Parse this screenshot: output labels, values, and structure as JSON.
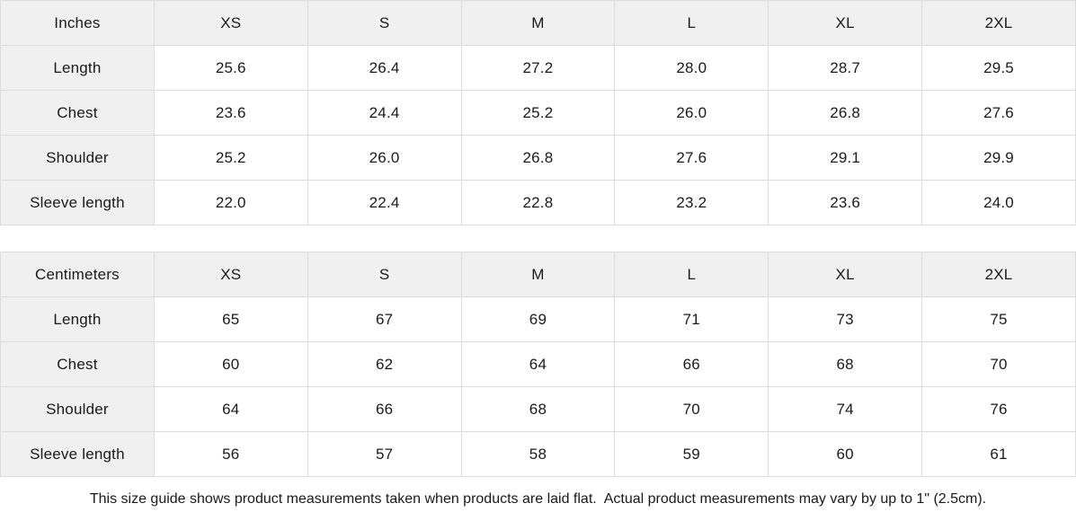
{
  "tables": [
    {
      "id": "inches",
      "unit_label": "Inches",
      "sizes": [
        "XS",
        "S",
        "M",
        "L",
        "XL",
        "2XL"
      ],
      "rows": [
        {
          "label": "Length",
          "values": [
            "25.6",
            "26.4",
            "27.2",
            "28.0",
            "28.7",
            "29.5"
          ]
        },
        {
          "label": "Chest",
          "values": [
            "23.6",
            "24.4",
            "25.2",
            "26.0",
            "26.8",
            "27.6"
          ]
        },
        {
          "label": "Shoulder",
          "values": [
            "25.2",
            "26.0",
            "26.8",
            "27.6",
            "29.1",
            "29.9"
          ]
        },
        {
          "label": "Sleeve length",
          "values": [
            "22.0",
            "22.4",
            "22.8",
            "23.2",
            "23.6",
            "24.0"
          ]
        }
      ]
    },
    {
      "id": "centimeters",
      "unit_label": "Centimeters",
      "sizes": [
        "XS",
        "S",
        "M",
        "L",
        "XL",
        "2XL"
      ],
      "rows": [
        {
          "label": "Length",
          "values": [
            "65",
            "67",
            "69",
            "71",
            "73",
            "75"
          ]
        },
        {
          "label": "Chest",
          "values": [
            "60",
            "62",
            "64",
            "66",
            "68",
            "70"
          ]
        },
        {
          "label": "Shoulder",
          "values": [
            "64",
            "66",
            "68",
            "70",
            "74",
            "76"
          ]
        },
        {
          "label": "Sleeve length",
          "values": [
            "56",
            "57",
            "58",
            "59",
            "60",
            "61"
          ]
        }
      ]
    }
  ],
  "footer": {
    "note": "This size guide shows product measurements taken when products are laid flat.  Actual product measurements may vary by up to 1\" (2.5cm)."
  },
  "colors": {
    "header_bg": "#f0f0f0",
    "border": "#dcdcdc",
    "text": "#1a1a1a",
    "cell_bg": "#ffffff"
  }
}
